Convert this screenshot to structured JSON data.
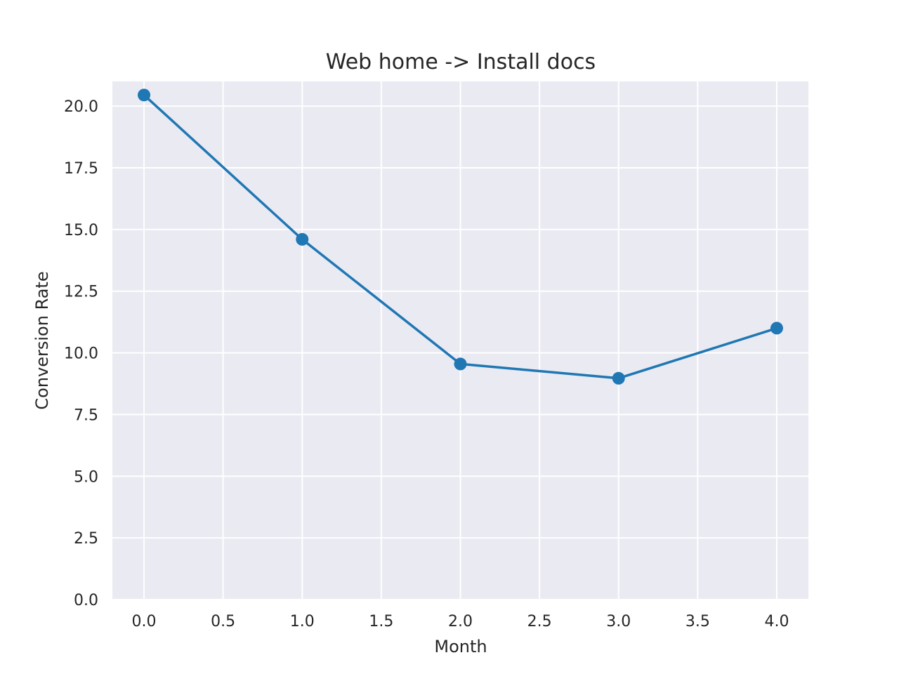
{
  "chart_data": {
    "type": "line",
    "title": "Web home -> Install docs",
    "xlabel": "Month",
    "ylabel": "Conversion Rate",
    "xlim": [
      -0.2,
      4.2
    ],
    "ylim": [
      0,
      21
    ],
    "xticks": [
      0.0,
      0.5,
      1.0,
      1.5,
      2.0,
      2.5,
      3.0,
      3.5,
      4.0
    ],
    "xtick_labels": [
      "0.0",
      "0.5",
      "1.0",
      "1.5",
      "2.0",
      "2.5",
      "3.0",
      "3.5",
      "4.0"
    ],
    "yticks": [
      0.0,
      2.5,
      5.0,
      7.5,
      10.0,
      12.5,
      15.0,
      17.5,
      20.0
    ],
    "ytick_labels": [
      "0.0",
      "2.5",
      "5.0",
      "7.5",
      "10.0",
      "12.5",
      "15.0",
      "17.5",
      "20.0"
    ],
    "grid": true,
    "background_color": "#eaeaf2",
    "series": [
      {
        "x": [
          0,
          1,
          2,
          3,
          4
        ],
        "y": [
          20.45,
          14.6,
          9.55,
          8.97,
          11.0
        ],
        "color": "#1f77b4",
        "marker": "circle"
      }
    ]
  }
}
